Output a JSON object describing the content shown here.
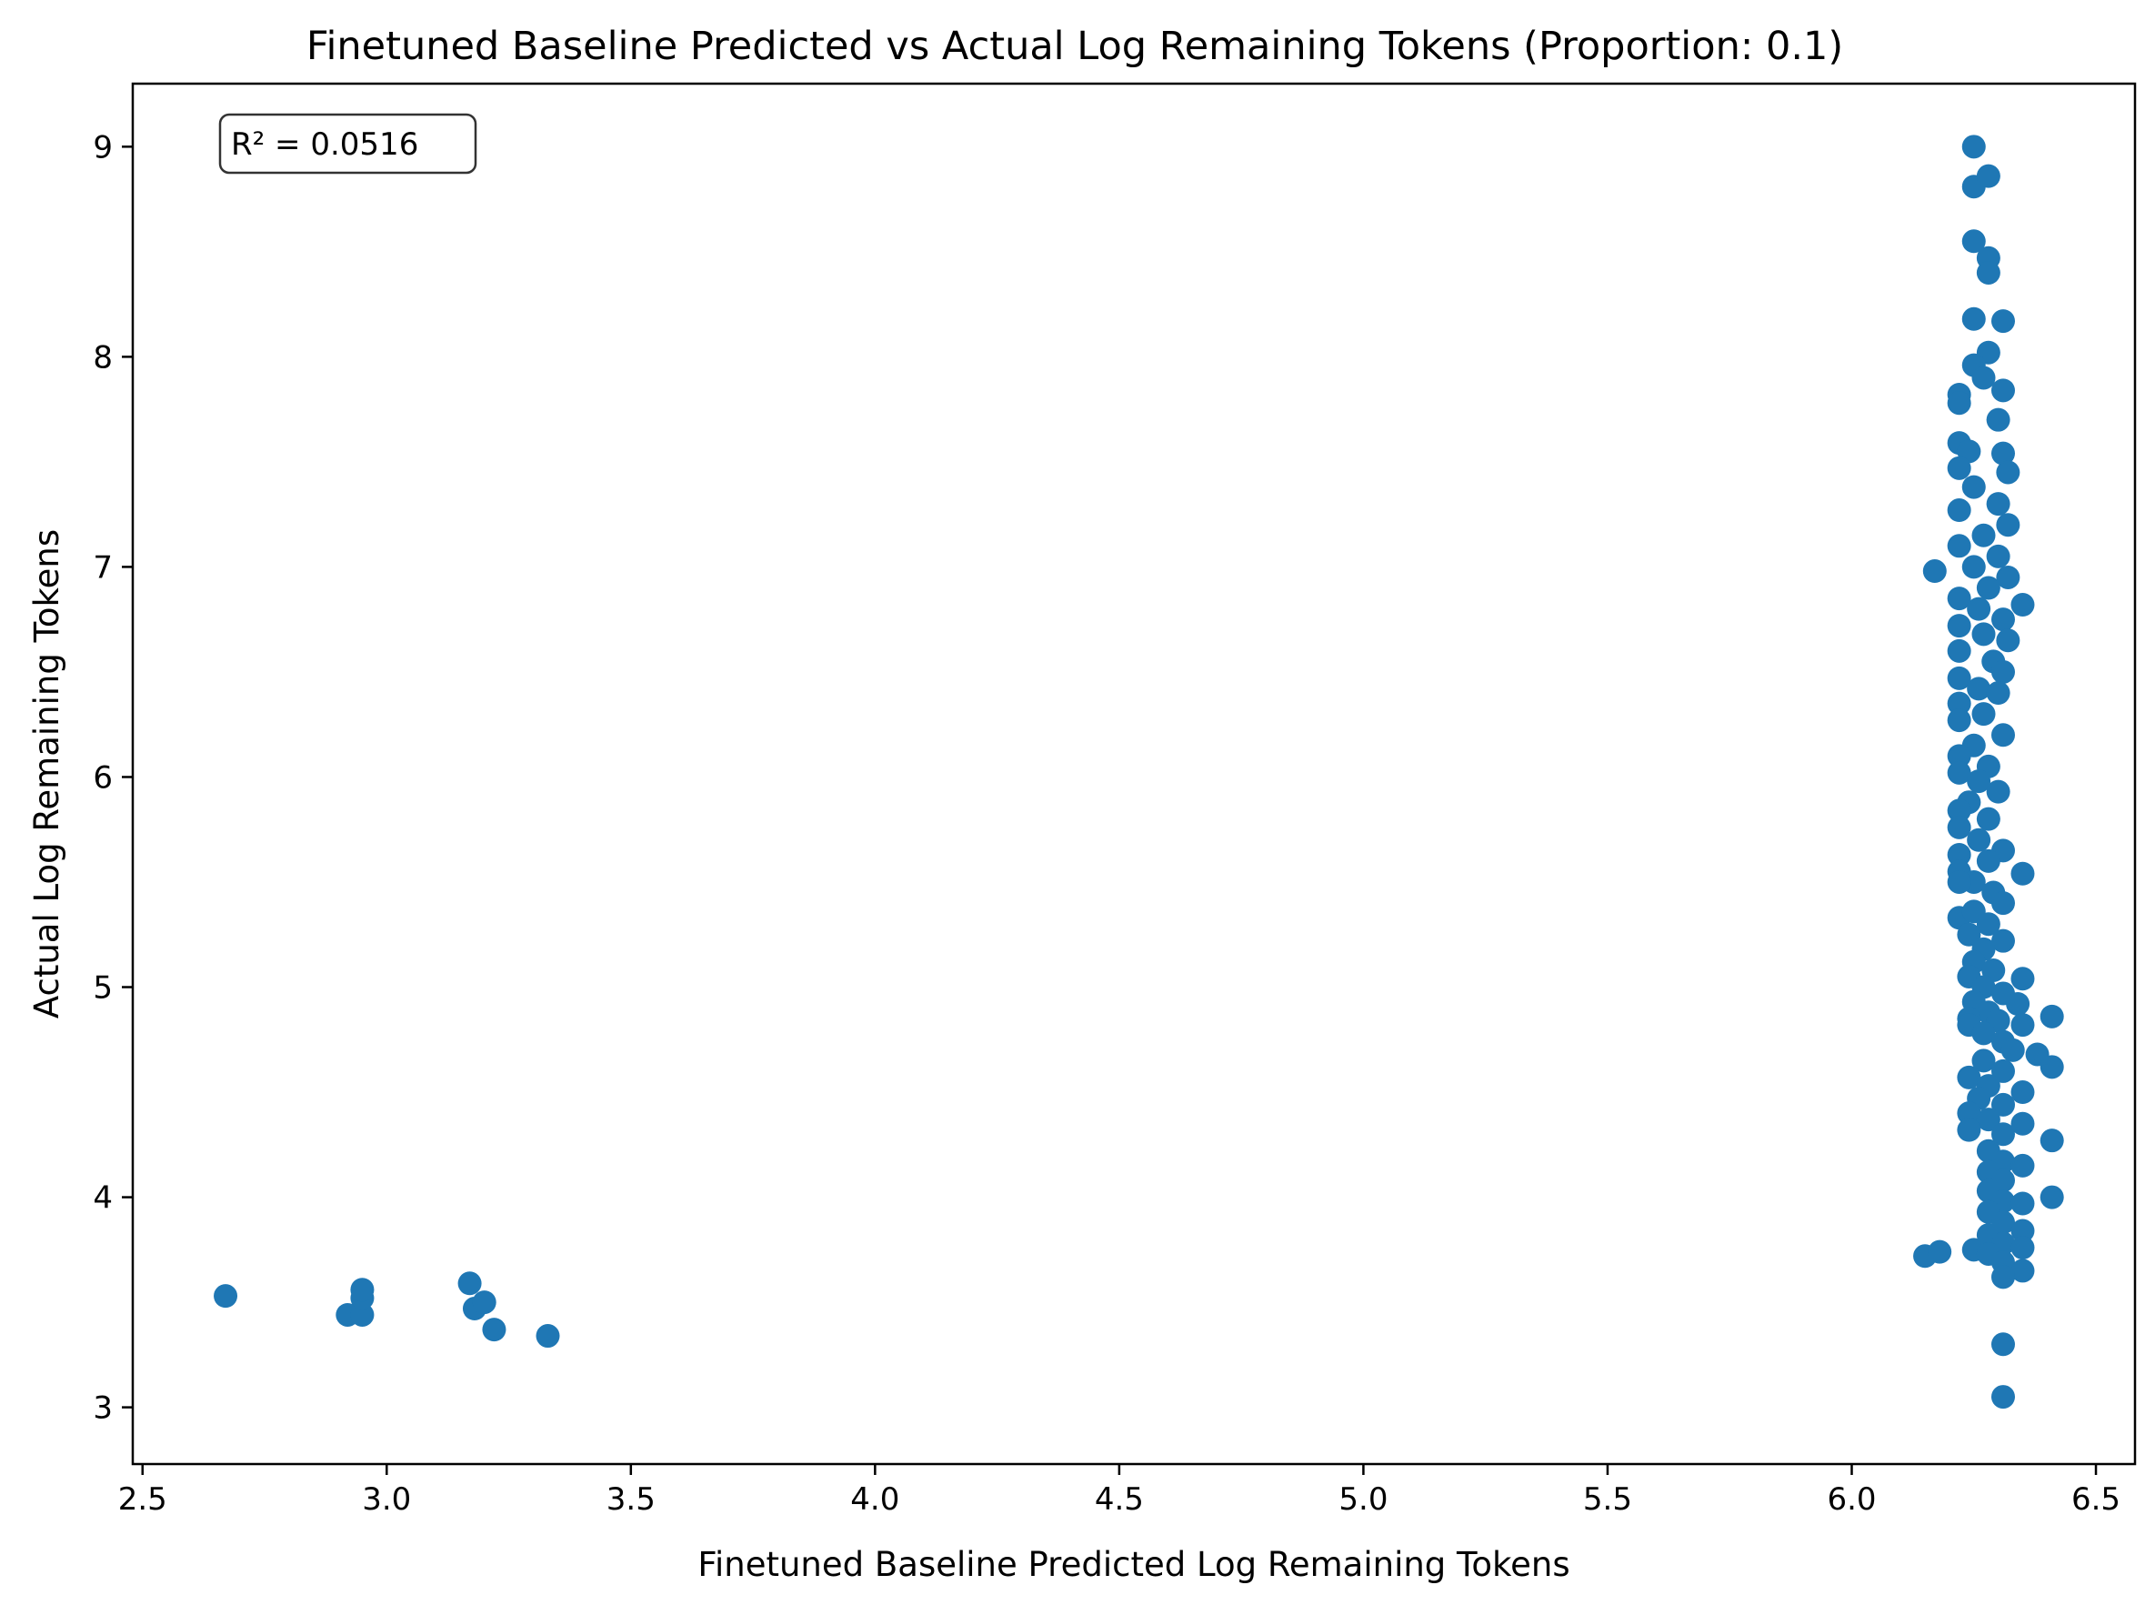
{
  "chart_data": {
    "type": "scatter",
    "title": "Finetuned Baseline Predicted vs Actual Log Remaining Tokens (Proportion: 0.1)",
    "xlabel": "Finetuned Baseline Predicted Log Remaining Tokens",
    "ylabel": "Actual Log Remaining Tokens",
    "xlim": [
      2.48,
      6.58
    ],
    "ylim": [
      2.73,
      9.3
    ],
    "xticks": [
      2.5,
      3.0,
      3.5,
      4.0,
      4.5,
      5.0,
      5.5,
      6.0,
      6.5
    ],
    "xtick_labels": [
      "2.5",
      "3.0",
      "3.5",
      "4.0",
      "4.5",
      "5.0",
      "5.5",
      "6.0",
      "6.5"
    ],
    "yticks": [
      3,
      4,
      5,
      6,
      7,
      8,
      9
    ],
    "ytick_labels": [
      "3",
      "4",
      "5",
      "6",
      "7",
      "8",
      "9"
    ],
    "grid": false,
    "marker_color": "#1f77b4",
    "annotation": {
      "text": "R² = 0.0516",
      "position": "top-left"
    },
    "series": [
      {
        "points": [
          [
            2.67,
            3.53
          ],
          [
            2.92,
            3.44
          ],
          [
            2.95,
            3.44
          ],
          [
            2.95,
            3.52
          ],
          [
            2.95,
            3.56
          ],
          [
            3.17,
            3.59
          ],
          [
            3.18,
            3.47
          ],
          [
            3.2,
            3.5
          ],
          [
            3.22,
            3.37
          ],
          [
            3.33,
            3.34
          ],
          [
            6.15,
            3.72
          ],
          [
            6.18,
            3.74
          ],
          [
            6.17,
            6.98
          ],
          [
            6.22,
            5.33
          ],
          [
            6.25,
            3.75
          ],
          [
            6.25,
            9.0
          ],
          [
            6.25,
            8.81
          ],
          [
            6.28,
            8.86
          ],
          [
            6.25,
            8.55
          ],
          [
            6.28,
            8.47
          ],
          [
            6.28,
            8.4
          ],
          [
            6.25,
            8.18
          ],
          [
            6.31,
            8.17
          ],
          [
            6.28,
            8.02
          ],
          [
            6.25,
            7.96
          ],
          [
            6.22,
            7.82
          ],
          [
            6.31,
            7.84
          ],
          [
            6.22,
            7.78
          ],
          [
            6.27,
            7.9
          ],
          [
            6.3,
            7.7
          ],
          [
            6.22,
            7.59
          ],
          [
            6.24,
            7.55
          ],
          [
            6.31,
            7.54
          ],
          [
            6.32,
            7.45
          ],
          [
            6.22,
            7.47
          ],
          [
            6.25,
            7.38
          ],
          [
            6.3,
            7.3
          ],
          [
            6.22,
            7.27
          ],
          [
            6.32,
            7.2
          ],
          [
            6.27,
            7.15
          ],
          [
            6.22,
            7.1
          ],
          [
            6.3,
            7.05
          ],
          [
            6.25,
            7.0
          ],
          [
            6.32,
            6.95
          ],
          [
            6.28,
            6.9
          ],
          [
            6.35,
            6.82
          ],
          [
            6.22,
            6.85
          ],
          [
            6.26,
            6.8
          ],
          [
            6.31,
            6.75
          ],
          [
            6.22,
            6.72
          ],
          [
            6.27,
            6.68
          ],
          [
            6.32,
            6.65
          ],
          [
            6.22,
            6.6
          ],
          [
            6.29,
            6.55
          ],
          [
            6.31,
            6.5
          ],
          [
            6.22,
            6.47
          ],
          [
            6.26,
            6.42
          ],
          [
            6.3,
            6.4
          ],
          [
            6.22,
            6.35
          ],
          [
            6.27,
            6.3
          ],
          [
            6.22,
            6.27
          ],
          [
            6.31,
            6.2
          ],
          [
            6.25,
            6.15
          ],
          [
            6.22,
            6.1
          ],
          [
            6.28,
            6.05
          ],
          [
            6.22,
            6.02
          ],
          [
            6.26,
            5.98
          ],
          [
            6.3,
            5.93
          ],
          [
            6.24,
            5.88
          ],
          [
            6.22,
            5.84
          ],
          [
            6.28,
            5.8
          ],
          [
            6.22,
            5.76
          ],
          [
            6.26,
            5.7
          ],
          [
            6.31,
            5.65
          ],
          [
            6.22,
            5.63
          ],
          [
            6.28,
            5.6
          ],
          [
            6.22,
            5.55
          ],
          [
            6.35,
            5.54
          ],
          [
            6.25,
            5.5
          ],
          [
            6.22,
            5.5
          ],
          [
            6.29,
            5.45
          ],
          [
            6.31,
            5.4
          ],
          [
            6.25,
            5.36
          ],
          [
            6.28,
            5.3
          ],
          [
            6.24,
            5.25
          ],
          [
            6.31,
            5.22
          ],
          [
            6.27,
            5.18
          ],
          [
            6.25,
            5.12
          ],
          [
            6.29,
            5.08
          ],
          [
            6.24,
            5.05
          ],
          [
            6.35,
            5.04
          ],
          [
            6.27,
            5.0
          ],
          [
            6.31,
            4.97
          ],
          [
            6.25,
            4.93
          ],
          [
            6.34,
            4.92
          ],
          [
            6.28,
            4.88
          ],
          [
            6.24,
            4.85
          ],
          [
            6.3,
            4.84
          ],
          [
            6.41,
            4.86
          ],
          [
            6.24,
            4.82
          ],
          [
            6.35,
            4.82
          ],
          [
            6.27,
            4.78
          ],
          [
            6.31,
            4.74
          ],
          [
            6.33,
            4.7
          ],
          [
            6.38,
            4.68
          ],
          [
            6.41,
            4.62
          ],
          [
            6.27,
            4.65
          ],
          [
            6.31,
            4.6
          ],
          [
            6.24,
            4.57
          ],
          [
            6.28,
            4.53
          ],
          [
            6.35,
            4.5
          ],
          [
            6.26,
            4.47
          ],
          [
            6.31,
            4.44
          ],
          [
            6.24,
            4.4
          ],
          [
            6.28,
            4.37
          ],
          [
            6.35,
            4.35
          ],
          [
            6.24,
            4.32
          ],
          [
            6.31,
            4.3
          ],
          [
            6.41,
            4.27
          ],
          [
            6.28,
            4.22
          ],
          [
            6.31,
            4.17
          ],
          [
            6.28,
            4.12
          ],
          [
            6.35,
            4.15
          ],
          [
            6.31,
            4.08
          ],
          [
            6.28,
            4.03
          ],
          [
            6.41,
            4.0
          ],
          [
            6.31,
            3.98
          ],
          [
            6.35,
            3.97
          ],
          [
            6.28,
            3.93
          ],
          [
            6.31,
            3.88
          ],
          [
            6.35,
            3.84
          ],
          [
            6.28,
            3.82
          ],
          [
            6.31,
            3.78
          ],
          [
            6.35,
            3.76
          ],
          [
            6.28,
            3.73
          ],
          [
            6.31,
            3.69
          ],
          [
            6.35,
            3.65
          ],
          [
            6.31,
            3.62
          ],
          [
            6.31,
            3.3
          ],
          [
            6.31,
            3.05
          ]
        ]
      }
    ]
  }
}
